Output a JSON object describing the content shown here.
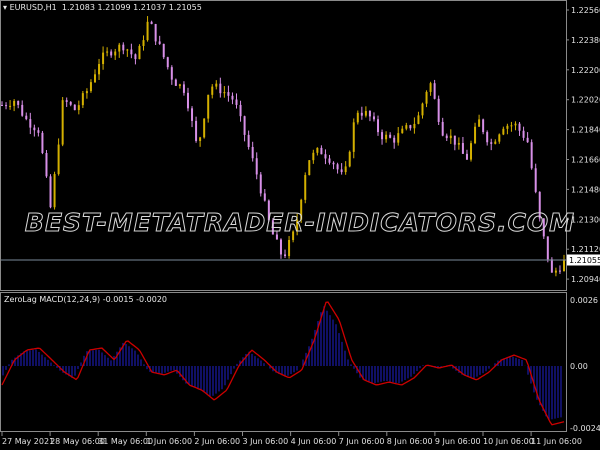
{
  "window": {
    "symbol_header": "EURUSD,H1  1.21083 1.21099 1.21037 1.21055",
    "watermark": "BEST-METATRADER-INDICATORS.COM",
    "current_price": "1.21055"
  },
  "colors": {
    "background": "#000000",
    "bull_candle": "#d4b000",
    "bear_candle": "#d890e8",
    "macd_hist": "#1a1aa8",
    "macd_signal": "#cc0000",
    "grid_border": "#8a8a8a"
  },
  "chart_data": [
    {
      "type": "candlestick",
      "title": "EURUSD,H1",
      "ohlc_last": {
        "open": 1.21083,
        "high": 1.21099,
        "low": 1.21037,
        "close": 1.21055
      },
      "y_ticks": [
        "1.22560",
        "1.22380",
        "1.22200",
        "1.22020",
        "1.21840",
        "1.21660",
        "1.21480",
        "1.21300",
        "1.21120",
        "1.20940"
      ],
      "ylim": [
        1.2092,
        1.2256
      ],
      "close_path": [
        1.21988,
        1.22018,
        1.21898,
        1.21838,
        1.21356,
        1.22018,
        1.21958,
        1.22078,
        1.22259,
        1.22319,
        1.22349,
        1.22259,
        1.225,
        1.22319,
        1.22139,
        1.22078,
        1.21717,
        1.22109,
        1.22078,
        1.22018,
        1.21777,
        1.21537,
        1.21236,
        1.21067,
        1.21236,
        1.21657,
        1.21717,
        1.21657,
        1.21537,
        1.21958,
        1.21928,
        1.21808,
        1.21777,
        1.21838,
        1.21898,
        1.22139,
        1.21838,
        1.21777,
        1.21657,
        1.21898,
        1.21747,
        1.21868,
        1.21868,
        1.21777,
        1.21296,
        1.20965,
        1.21043
      ],
      "x_labels": [
        "27 May 2021",
        "28 May 06:00",
        "31 May 06:00",
        "1 Jun 06:00",
        "2 Jun 06:00",
        "3 Jun 06:00",
        "4 Jun 06:00",
        "7 Jun 06:00",
        "8 Jun 06:00",
        "9 Jun 06:00",
        "10 Jun 06:00",
        "11 Jun 06:00"
      ]
    },
    {
      "type": "bar+line",
      "title": "ZeroLag MACD(12,24,9) -0.0015 -0.0020",
      "y_ticks": [
        "0.0026",
        "0.00",
        "-0.0024"
      ],
      "ylim": [
        -0.0024,
        0.0026
      ],
      "signal_path": [
        -0.00075,
        0.00024,
        0.00063,
        0.00071,
        0.00024,
        -0.00024,
        -0.00055,
        0.00063,
        0.00071,
        0.00024,
        0.00102,
        0.00063,
        -0.00024,
        -0.00035,
        -0.00016,
        -0.00075,
        -0.00095,
        -0.00134,
        -0.00095,
        4e-05,
        0.00063,
        0.00024,
        -0.00024,
        -0.00047,
        -0.00016,
        0.00102,
        0.0026,
        0.00181,
        0.00024,
        -0.00055,
        -0.00075,
        -0.00063,
        -0.00075,
        -0.00047,
        4e-05,
        -8e-05,
        4e-05,
        -0.00035,
        -0.00055,
        -0.00024,
        0.00024,
        0.00043,
        0.00024,
        -0.00134,
        -0.00232,
        -0.0022
      ]
    }
  ]
}
